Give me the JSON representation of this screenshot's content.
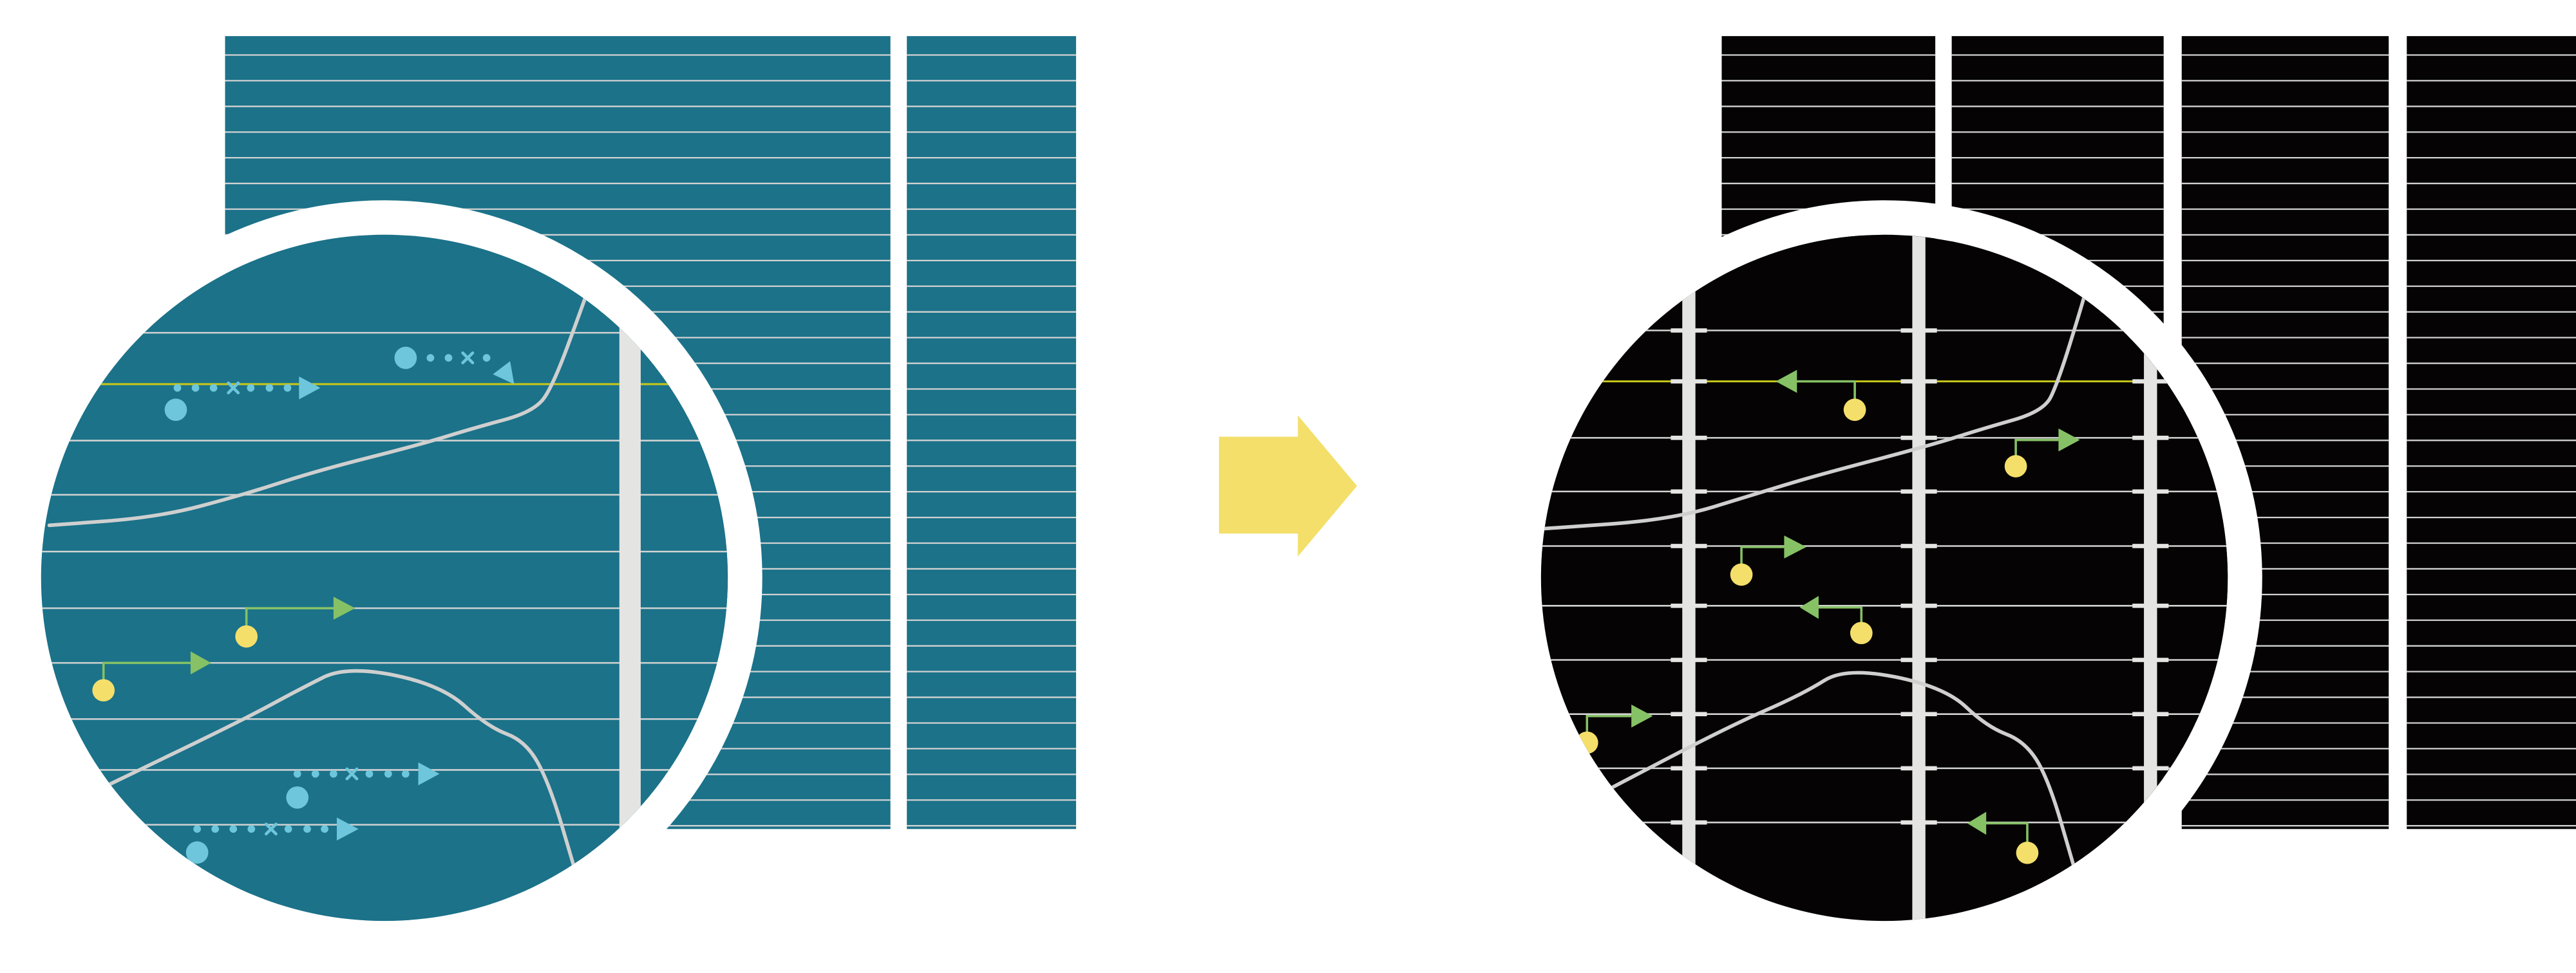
{
  "colors": {
    "background": "#ffffff",
    "before_panel": "#1b7289",
    "after_panel": "#050303",
    "grid_line": "#d2d2d2",
    "highlight_line": "#c6c71c",
    "vertical_bar": "#e4e4e2",
    "curve": "#cfcfcf",
    "dotted_marker": "#6ec6dc",
    "green_arrow": "#86c166",
    "yellow_dot": "#f4df6a",
    "transition_arrow": "#f3df6a",
    "magnifier_ring": "#ffffff"
  },
  "icons": {
    "transition": "right-arrow-icon",
    "magnifier": "magnifier-lens-icon"
  }
}
